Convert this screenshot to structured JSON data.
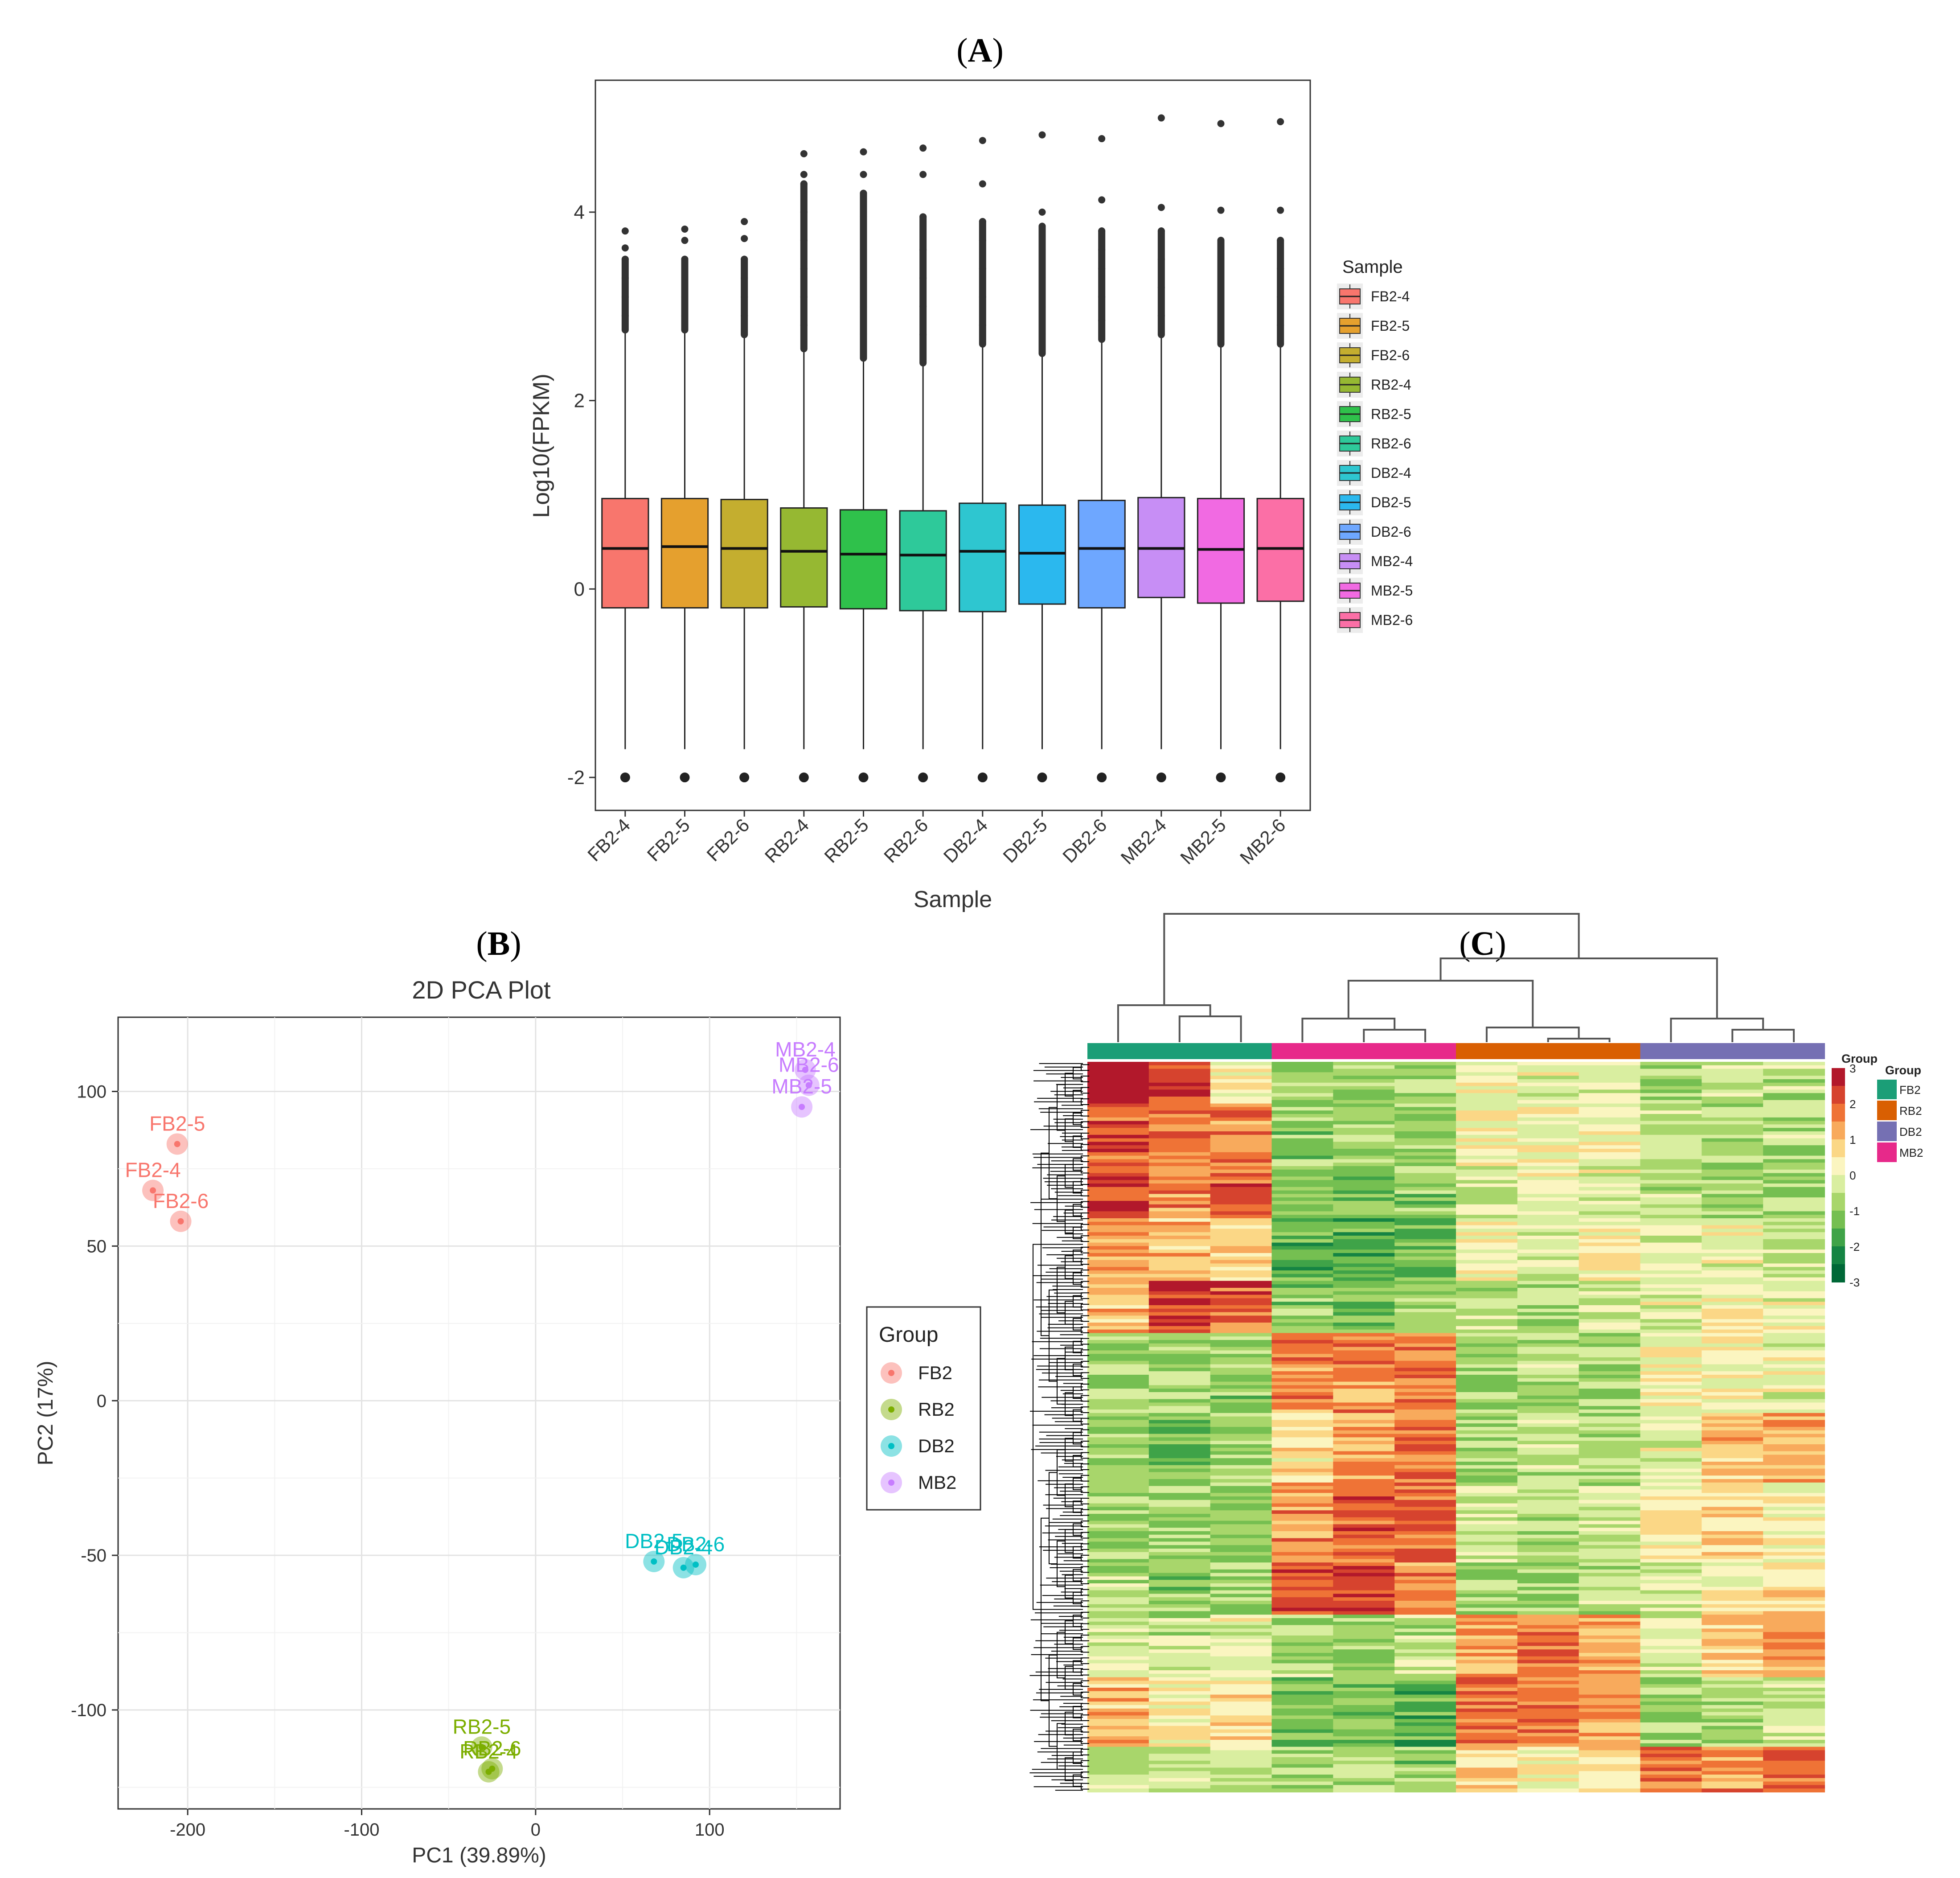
{
  "panels": {
    "a": {
      "open": "(",
      "letter": "A",
      "close": ")"
    },
    "b": {
      "open": "(",
      "letter": "B",
      "close": ")"
    },
    "c": {
      "open": "(",
      "letter": "C",
      "close": ")"
    }
  },
  "chart_data": [
    {
      "id": "A",
      "type": "box",
      "xlabel": "Sample",
      "ylabel": "Log10(FPKM)",
      "ylim": [
        -2.35,
        5.4
      ],
      "yticks": [
        -2,
        0,
        2,
        4
      ],
      "legend_title": "Sample",
      "legend_position": "right",
      "categories": [
        "FB2-4",
        "FB2-5",
        "FB2-6",
        "RB2-4",
        "RB2-5",
        "RB2-6",
        "DB2-4",
        "DB2-5",
        "DB2-6",
        "MB2-4",
        "MB2-5",
        "MB2-6"
      ],
      "colors": [
        "#f8766d",
        "#e5a02e",
        "#c4ae2f",
        "#96b832",
        "#2fc14b",
        "#2ec99a",
        "#2ec6d0",
        "#2bb8ee",
        "#6ea7ff",
        "#c78ef5",
        "#f16ae2",
        "#fb6fa6"
      ],
      "boxes": [
        {
          "q1": -0.2,
          "median": 0.43,
          "q3": 0.96,
          "whisker_low": -1.7,
          "whisker_high": 2.75,
          "outliers_high": [
            2.9,
            3.1,
            3.3,
            3.5,
            3.62,
            3.8
          ],
          "outlier_low": -2
        },
        {
          "q1": -0.2,
          "median": 0.45,
          "q3": 0.96,
          "whisker_low": -1.7,
          "whisker_high": 2.75,
          "outliers_high": [
            2.9,
            3.1,
            3.3,
            3.5,
            3.7,
            3.82
          ],
          "outlier_low": -2
        },
        {
          "q1": -0.2,
          "median": 0.43,
          "q3": 0.95,
          "whisker_low": -1.7,
          "whisker_high": 2.7,
          "outliers_high": [
            2.9,
            3.1,
            3.3,
            3.5,
            3.72,
            3.9
          ],
          "outlier_low": -2
        },
        {
          "q1": -0.19,
          "median": 0.4,
          "q3": 0.86,
          "whisker_low": -1.7,
          "whisker_high": 2.55,
          "outliers_high": [
            2.8,
            3.1,
            3.4,
            3.7,
            4.0,
            4.3,
            4.4,
            4.62
          ],
          "outlier_low": -2
        },
        {
          "q1": -0.21,
          "median": 0.37,
          "q3": 0.84,
          "whisker_low": -1.7,
          "whisker_high": 2.45,
          "outliers_high": [
            2.7,
            3.0,
            3.3,
            3.6,
            3.95,
            4.2,
            4.4,
            4.64
          ],
          "outlier_low": -2
        },
        {
          "q1": -0.23,
          "median": 0.36,
          "q3": 0.83,
          "whisker_low": -1.7,
          "whisker_high": 2.4,
          "outliers_high": [
            2.7,
            3.0,
            3.3,
            3.6,
            3.95,
            4.4,
            4.68
          ],
          "outlier_low": -2
        },
        {
          "q1": -0.24,
          "median": 0.4,
          "q3": 0.91,
          "whisker_low": -1.7,
          "whisker_high": 2.6,
          "outliers_high": [
            2.8,
            3.1,
            3.4,
            3.7,
            3.9,
            4.3,
            4.76
          ],
          "outlier_low": -2
        },
        {
          "q1": -0.16,
          "median": 0.38,
          "q3": 0.89,
          "whisker_low": -1.7,
          "whisker_high": 2.5,
          "outliers_high": [
            2.7,
            3.0,
            3.3,
            3.6,
            3.85,
            4.0,
            4.82
          ],
          "outlier_low": -2
        },
        {
          "q1": -0.2,
          "median": 0.43,
          "q3": 0.94,
          "whisker_low": -1.7,
          "whisker_high": 2.65,
          "outliers_high": [
            2.85,
            3.1,
            3.4,
            3.6,
            3.8,
            4.13,
            4.78
          ],
          "outlier_low": -2
        },
        {
          "q1": -0.09,
          "median": 0.43,
          "q3": 0.97,
          "whisker_low": -1.7,
          "whisker_high": 2.7,
          "outliers_high": [
            2.9,
            3.2,
            3.5,
            3.8,
            4.05,
            5.0
          ],
          "outlier_low": -2
        },
        {
          "q1": -0.15,
          "median": 0.42,
          "q3": 0.96,
          "whisker_low": -1.7,
          "whisker_high": 2.6,
          "outliers_high": [
            2.8,
            3.1,
            3.4,
            3.7,
            4.02,
            4.94
          ],
          "outlier_low": -2
        },
        {
          "q1": -0.13,
          "median": 0.43,
          "q3": 0.96,
          "whisker_low": -1.7,
          "whisker_high": 2.6,
          "outliers_high": [
            2.8,
            3.1,
            3.4,
            3.7,
            4.02,
            4.96
          ],
          "outlier_low": -2
        }
      ]
    },
    {
      "id": "B",
      "type": "scatter",
      "title": "2D PCA Plot",
      "xlabel": "PC1 (39.89%)",
      "ylabel": "PC2 (17%)",
      "xlim": [
        -240,
        175
      ],
      "ylim": [
        -132,
        124
      ],
      "xticks": [
        -200,
        -100,
        0,
        100
      ],
      "yticks": [
        -100,
        -50,
        0,
        50,
        100
      ],
      "grid": true,
      "legend_title": "Group",
      "legend_position": "right",
      "groups": [
        {
          "name": "FB2",
          "color": "#f8766d"
        },
        {
          "name": "RB2",
          "color": "#7cae00"
        },
        {
          "name": "DB2",
          "color": "#00bfc4"
        },
        {
          "name": "MB2",
          "color": "#c77cff"
        }
      ],
      "points": [
        {
          "label": "FB2-5",
          "group": "FB2",
          "x": -206,
          "y": 83
        },
        {
          "label": "FB2-4",
          "group": "FB2",
          "x": -220,
          "y": 68
        },
        {
          "label": "FB2-6",
          "group": "FB2",
          "x": -204,
          "y": 58
        },
        {
          "label": "MB2-4",
          "group": "MB2",
          "x": 155,
          "y": 107
        },
        {
          "label": "MB2-6",
          "group": "MB2",
          "x": 157,
          "y": 102
        },
        {
          "label": "MB2-5",
          "group": "MB2",
          "x": 153,
          "y": 95
        },
        {
          "label": "DB2-5",
          "group": "DB2",
          "x": 68,
          "y": -52
        },
        {
          "label": "DB2-4",
          "group": "DB2",
          "x": 85,
          "y": -54
        },
        {
          "label": "DB2-6",
          "group": "DB2",
          "x": 92,
          "y": -53
        },
        {
          "label": "RB2-5",
          "group": "RB2",
          "x": -31,
          "y": -112
        },
        {
          "label": "RB2-4",
          "group": "RB2",
          "x": -27,
          "y": -120
        },
        {
          "label": "RB2-6",
          "group": "RB2",
          "x": -25,
          "y": -119
        }
      ]
    },
    {
      "id": "C",
      "type": "heatmap",
      "annotation_title": "Group",
      "legend_title": "Group",
      "colorbar_ticks": [
        "3",
        "2",
        "1",
        "0",
        "-1",
        "-2",
        "-3"
      ],
      "colorbar_colors": [
        "#b2182b",
        "#d6432e",
        "#ef7336",
        "#f8aa5c",
        "#fbd786",
        "#fbf5c0",
        "#d9eea0",
        "#a8d66b",
        "#75bf51",
        "#3fa348",
        "#158443",
        "#006837"
      ],
      "groups": [
        {
          "name": "FB2",
          "color": "#1b9e77"
        },
        {
          "name": "RB2",
          "color": "#d95f02"
        },
        {
          "name": "DB2",
          "color": "#7570b3"
        },
        {
          "name": "MB2",
          "color": "#e7298a"
        }
      ],
      "column_groups": [
        "FB2",
        "FB2",
        "FB2",
        "MB2",
        "MB2",
        "MB2",
        "RB2",
        "RB2",
        "RB2",
        "DB2",
        "DB2",
        "DB2"
      ],
      "row_blocks": [
        {
          "weight": 4,
          "values": [
            3,
            2.3,
            0.3,
            -0.9,
            -0.6,
            -0.8,
            0.2,
            0.0,
            0.1,
            -0.7,
            -0.4,
            -0.6
          ]
        },
        {
          "weight": 6,
          "values": [
            2.0,
            1.8,
            1.6,
            -0.9,
            -0.8,
            -0.9,
            0.3,
            0.1,
            0.2,
            -0.6,
            -0.6,
            -0.5
          ]
        },
        {
          "weight": 5,
          "values": [
            2.2,
            1.5,
            2.0,
            -1.0,
            -1.2,
            -0.9,
            -0.2,
            0.1,
            0.0,
            -0.5,
            -0.8,
            -0.7
          ]
        },
        {
          "weight": 6,
          "values": [
            1.3,
            1.0,
            0.7,
            -1.4,
            -1.6,
            -1.2,
            0.2,
            -0.2,
            0.3,
            -0.3,
            0.1,
            -0.4
          ]
        },
        {
          "weight": 5,
          "values": [
            0.9,
            2.3,
            2.0,
            -1.0,
            -1.2,
            -0.9,
            -0.4,
            -0.6,
            -0.3,
            -0.1,
            0.2,
            0.0
          ]
        },
        {
          "weight": 8,
          "values": [
            -0.7,
            -0.6,
            -0.9,
            1.6,
            1.4,
            1.7,
            -0.8,
            -0.5,
            -0.7,
            0.3,
            0.1,
            0.0
          ]
        },
        {
          "weight": 7,
          "values": [
            -0.9,
            -1.1,
            -0.8,
            0.6,
            1.2,
            1.8,
            -0.6,
            -0.4,
            -0.7,
            0.0,
            1.0,
            1.2
          ]
        },
        {
          "weight": 8,
          "values": [
            -0.8,
            -0.7,
            -1.0,
            1.4,
            2.0,
            1.8,
            -0.3,
            -0.6,
            -0.4,
            0.4,
            0.8,
            0.3
          ]
        },
        {
          "weight": 5,
          "values": [
            -0.6,
            -0.9,
            -0.7,
            2.0,
            2.2,
            1.6,
            -0.7,
            -0.8,
            -0.5,
            -0.2,
            0.2,
            0.6
          ]
        },
        {
          "weight": 6,
          "values": [
            -0.2,
            -0.4,
            -0.1,
            -0.6,
            -0.8,
            -0.5,
            1.4,
            1.6,
            1.3,
            -0.3,
            0.7,
            1.4
          ]
        },
        {
          "weight": 7,
          "values": [
            1.1,
            0.2,
            0.6,
            -1.4,
            -1.2,
            -1.5,
            1.8,
            1.6,
            1.4,
            -0.7,
            -0.6,
            -0.3
          ]
        },
        {
          "weight": 5,
          "values": [
            -0.3,
            -0.5,
            -0.6,
            -0.8,
            -0.6,
            -0.9,
            0.8,
            0.4,
            0.6,
            1.8,
            1.4,
            2.0
          ]
        }
      ]
    }
  ]
}
